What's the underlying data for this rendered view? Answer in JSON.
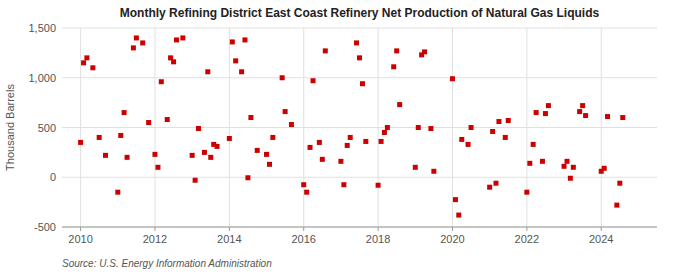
{
  "chart_data": {
    "type": "scatter",
    "title": "Monthly Refining District East Coast Refinery Net Production of Natural Gas Liquids",
    "ylabel": "Thousand Barrels",
    "source": "Source: U.S. Energy Information Administration",
    "color": "#cc0000",
    "marker": "square",
    "grid": true,
    "xlim": [
      2009.5,
      2025.5
    ],
    "xticks": [
      2010,
      2012,
      2014,
      2016,
      2018,
      2020,
      2022,
      2024
    ],
    "ylim": [
      -500,
      1500
    ],
    "yticks": [
      -500,
      0,
      500,
      {
        "value": 1000,
        "label": "1,000"
      },
      {
        "value": 1500,
        "label": "1,500"
      }
    ],
    "x": [
      2010.0,
      2010.08,
      2010.17,
      2010.33,
      2010.5,
      2010.67,
      2011.0,
      2011.08,
      2011.17,
      2011.25,
      2011.42,
      2011.5,
      2011.67,
      2011.83,
      2012.0,
      2012.08,
      2012.17,
      2012.33,
      2012.42,
      2012.5,
      2012.58,
      2012.75,
      2013.0,
      2013.08,
      2013.17,
      2013.33,
      2013.42,
      2013.5,
      2013.58,
      2013.67,
      2014.0,
      2014.08,
      2014.17,
      2014.33,
      2014.42,
      2014.5,
      2014.58,
      2014.75,
      2015.0,
      2015.08,
      2015.17,
      2015.42,
      2015.5,
      2015.67,
      2016.0,
      2016.08,
      2016.17,
      2016.25,
      2016.42,
      2016.5,
      2016.58,
      2017.0,
      2017.08,
      2017.17,
      2017.25,
      2017.42,
      2017.5,
      2017.58,
      2017.67,
      2018.0,
      2018.08,
      2018.17,
      2018.25,
      2018.42,
      2018.5,
      2018.58,
      2019.0,
      2019.08,
      2019.17,
      2019.25,
      2019.42,
      2019.5,
      2020.0,
      2020.08,
      2020.17,
      2020.25,
      2020.42,
      2020.5,
      2021.0,
      2021.08,
      2021.17,
      2021.25,
      2021.42,
      2021.5,
      2022.0,
      2022.08,
      2022.17,
      2022.25,
      2022.42,
      2022.5,
      2022.58,
      2023.0,
      2023.08,
      2023.17,
      2023.25,
      2023.42,
      2023.5,
      2023.58,
      2024.0,
      2024.08,
      2024.17,
      2024.42,
      2024.5,
      2024.58
    ],
    "values": [
      350,
      1150,
      1200,
      1100,
      400,
      220,
      -150,
      420,
      650,
      200,
      1300,
      1400,
      1350,
      550,
      230,
      100,
      960,
      580,
      1200,
      1160,
      1380,
      1400,
      220,
      -30,
      490,
      250,
      1060,
      200,
      330,
      310,
      390,
      1360,
      1170,
      1060,
      1380,
      -5,
      600,
      270,
      230,
      130,
      400,
      1000,
      660,
      530,
      -75,
      -150,
      300,
      970,
      350,
      180,
      1270,
      160,
      -75,
      320,
      400,
      1350,
      1200,
      940,
      360,
      -80,
      360,
      450,
      500,
      1110,
      1270,
      730,
      100,
      500,
      1230,
      1260,
      490,
      60,
      990,
      -225,
      -380,
      380,
      330,
      500,
      -100,
      460,
      -60,
      560,
      400,
      570,
      -150,
      140,
      330,
      650,
      160,
      640,
      720,
      110,
      160,
      -10,
      100,
      660,
      720,
      620,
      60,
      90,
      610,
      -280,
      -60,
      600
    ]
  }
}
